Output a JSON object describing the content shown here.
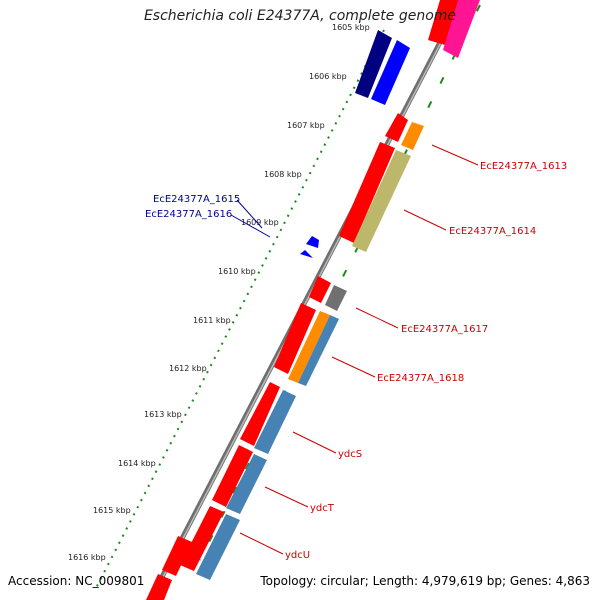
{
  "header": {
    "title": "Escherichia coli E24377A, complete genome"
  },
  "footer": {
    "accession": "Accession: NC_009801",
    "topology": "Topology: circular; Length: 4,979,619 bp; Genes: 4,863"
  },
  "ticks": [
    "1605 kbp",
    "1606 kbp",
    "1607 kbp",
    "1608 kbp",
    "1609 kbp",
    "1610 kbp",
    "1611 kbp",
    "1612 kbp",
    "1613 kbp",
    "1614 kbp",
    "1615 kbp",
    "1616 kbp"
  ],
  "gene_labels": [
    {
      "name": "EcE24377A_1613",
      "color": "#cc0000"
    },
    {
      "name": "EcE24377A_1614",
      "color": "#cc0000"
    },
    {
      "name": "EcE24377A_1615",
      "color": "#000099"
    },
    {
      "name": "EcE24377A_1616",
      "color": "#000099"
    },
    {
      "name": "EcE24377A_1617",
      "color": "#cc0000"
    },
    {
      "name": "EcE24377A_1618",
      "color": "#cc0000"
    },
    {
      "name": "ydcS",
      "color": "#cc0000"
    },
    {
      "name": "ydcT",
      "color": "#cc0000"
    },
    {
      "name": "ydcU",
      "color": "#cc0000"
    }
  ],
  "colors": {
    "backbone": "#8a8a8a",
    "tick_dots": "#1a8a1a",
    "red": "#ff0000",
    "dark_red": "#b00000",
    "blue": "#0000ff",
    "navy": "#000080",
    "orange": "#ff8c00",
    "khaki": "#bdb76b",
    "grey": "#707070",
    "steelblue": "#4682b4",
    "magenta": "#ff1493"
  }
}
